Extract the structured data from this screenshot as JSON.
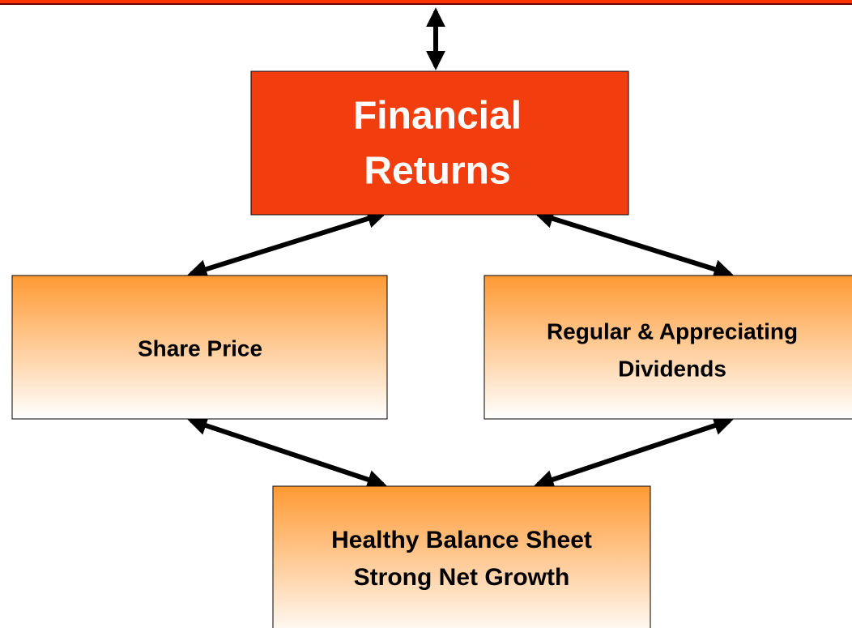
{
  "nodes": [
    {
      "lines": [
        "Financial",
        "Returns"
      ]
    },
    {
      "lines": [
        "Share Price"
      ]
    },
    {
      "lines": [
        "Regular & Appreciating",
        "Dividends"
      ]
    },
    {
      "lines": [
        "Healthy Balance Sheet",
        "Strong Net Growth"
      ]
    }
  ]
}
